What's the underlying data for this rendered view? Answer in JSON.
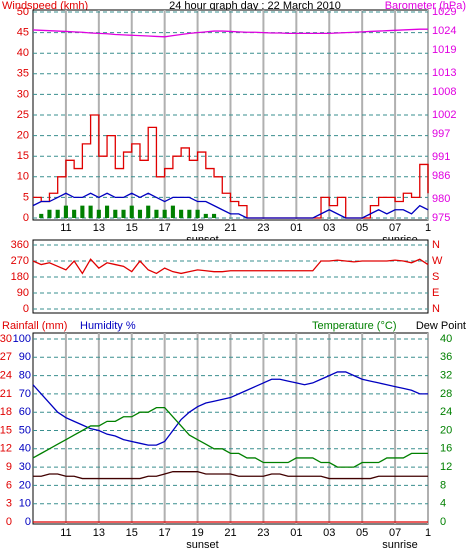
{
  "chart_data": [
    {
      "type": "line",
      "title": "24 hour graph day : 22 March 2010",
      "ylabel": "Windspeed (kmh)",
      "y2label": "Barometer (hPa)",
      "ycolor": "#e00000",
      "y2color": "#e000e0",
      "xlim": [
        0,
        24
      ],
      "xticks": [
        {
          "value": 2,
          "label": "11"
        },
        {
          "value": 4,
          "label": "13"
        },
        {
          "value": 6,
          "label": "15"
        },
        {
          "value": 8,
          "label": "17"
        },
        {
          "value": 10,
          "label": "19"
        },
        {
          "value": 12,
          "label": "21"
        },
        {
          "value": 14,
          "label": "23"
        },
        {
          "value": 16,
          "label": "01"
        },
        {
          "value": 18,
          "label": "03"
        },
        {
          "value": 20,
          "label": "05"
        },
        {
          "value": 22,
          "label": "07"
        },
        {
          "value": 24,
          "label": "1"
        }
      ],
      "ylim": [
        0,
        50
      ],
      "yticks": [
        0,
        5,
        10,
        15,
        20,
        25,
        30,
        35,
        40,
        45,
        50
      ],
      "y2lim": [
        975,
        1029
      ],
      "y2ticks": [
        975,
        980,
        986,
        991,
        997,
        1002,
        1008,
        1013,
        1019,
        1024,
        1029
      ],
      "annotations": [
        {
          "text": "sunset",
          "x": 10.3
        },
        {
          "text": "sunrise",
          "x": 22.3
        }
      ],
      "x": [
        0,
        0.5,
        1,
        1.5,
        2,
        2.5,
        3,
        3.5,
        4,
        4.5,
        5,
        5.5,
        6,
        6.5,
        7,
        7.5,
        8,
        8.5,
        9,
        9.5,
        10,
        10.5,
        11,
        11.5,
        12,
        12.5,
        13,
        13.5,
        14,
        14.5,
        15,
        15.5,
        16,
        16.5,
        17,
        17.5,
        18,
        18.5,
        19,
        19.5,
        20,
        20.5,
        21,
        21.5,
        22,
        22.5,
        23,
        23.5,
        24
      ],
      "series": [
        {
          "type": "bar",
          "color": "#008000",
          "values": [
            0,
            1,
            2,
            2,
            3,
            2,
            3,
            3,
            2,
            3,
            2,
            2,
            3,
            2,
            3,
            2,
            2,
            3,
            2,
            2,
            2,
            1,
            1,
            0,
            0,
            0,
            0,
            0,
            0,
            0,
            0,
            0,
            0,
            0,
            0,
            0,
            0,
            0,
            0,
            0,
            0,
            0,
            0,
            0,
            0,
            0,
            0,
            0,
            0
          ]
        },
        {
          "type": "step",
          "color": "#e00000",
          "values": [
            5,
            4,
            6,
            10,
            14,
            12,
            18,
            25,
            15,
            20,
            12,
            16,
            18,
            14,
            22,
            10,
            12,
            15,
            17,
            14,
            16,
            12,
            10,
            6,
            4,
            3,
            0,
            0,
            0,
            0,
            0,
            0,
            0,
            0,
            0,
            5,
            3,
            5,
            0,
            0,
            0,
            3,
            5,
            5,
            4,
            6,
            5,
            13,
            6
          ]
        },
        {
          "type": "line",
          "color": "#0000c0",
          "values": [
            3,
            4,
            4,
            5,
            6,
            5,
            5,
            6,
            5,
            6,
            5,
            5,
            6,
            5,
            6,
            5,
            4,
            5,
            5,
            5,
            4,
            4,
            3,
            2,
            1,
            1,
            0,
            0,
            0,
            0,
            0,
            0,
            0,
            0,
            0,
            1,
            2,
            1,
            0,
            0,
            0,
            1,
            2,
            1,
            2,
            2,
            1,
            3,
            2
          ]
        },
        {
          "type": "line",
          "color": "#e000e0",
          "axis": "y2",
          "values": [
            1024.3,
            1024.2,
            1024.1,
            1024.0,
            1023.9,
            1023.8,
            1023.7,
            1023.5,
            1023.4,
            1023.3,
            1023.1,
            1023.0,
            1022.9,
            1022.8,
            1022.7,
            1022.6,
            1022.5,
            1022.8,
            1023.1,
            1023.4,
            1023.6,
            1023.8,
            1024.0,
            1024.0,
            1023.9,
            1023.8,
            1023.7,
            1023.7,
            1023.6,
            1023.5,
            1023.5,
            1023.4,
            1023.4,
            1023.4,
            1023.4,
            1023.4,
            1023.4,
            1023.5,
            1023.6,
            1023.7,
            1023.8,
            1023.9,
            1024.0,
            1024.1,
            1024.2,
            1024.3,
            1024.4,
            1024.5,
            1024.5
          ]
        }
      ]
    },
    {
      "type": "line",
      "ycolor": "#e00000",
      "y2color": "#e00000",
      "xlim": [
        0,
        24
      ],
      "xticks": [
        {
          "value": 2,
          "label": ""
        },
        {
          "value": 4,
          "label": ""
        }
      ],
      "ylim": [
        0,
        360
      ],
      "yticks": [
        0,
        90,
        180,
        270,
        360
      ],
      "y2lim": [
        0,
        360
      ],
      "y2ticks": [
        {
          "value": 0,
          "label": "N"
        },
        {
          "value": 90,
          "label": "E"
        },
        {
          "value": 180,
          "label": "S"
        },
        {
          "value": 270,
          "label": "W"
        },
        {
          "value": 360,
          "label": "N"
        }
      ],
      "x": [
        0,
        0.5,
        1,
        1.5,
        2,
        2.5,
        3,
        3.5,
        4,
        4.5,
        5,
        5.5,
        6,
        6.5,
        7,
        7.5,
        8,
        8.5,
        9,
        9.5,
        10,
        10.5,
        11,
        11.5,
        12,
        12.5,
        13,
        13.5,
        14,
        14.5,
        15,
        15.5,
        16,
        16.5,
        17,
        17.5,
        18,
        18.5,
        19,
        19.5,
        20,
        20.5,
        21,
        21.5,
        22,
        22.5,
        23,
        23.5,
        24
      ],
      "series": [
        {
          "type": "line",
          "color": "#e00000",
          "values": [
            270,
            250,
            260,
            240,
            220,
            270,
            200,
            280,
            230,
            260,
            250,
            240,
            210,
            270,
            220,
            200,
            230,
            210,
            200,
            210,
            220,
            215,
            210,
            210,
            215,
            215,
            215,
            215,
            215,
            215,
            215,
            215,
            215,
            215,
            215,
            270,
            270,
            275,
            270,
            265,
            270,
            270,
            270,
            270,
            275,
            270,
            260,
            280,
            250
          ]
        }
      ]
    },
    {
      "type": "line",
      "ylabel": "Rainfall (mm)",
      "ylabel2": "Humidity %",
      "y2label": "Temperature (°C)",
      "y2label2": "Dew Point",
      "ycolor": "#0000c0",
      "y2color": "#008000",
      "y3color": "#e00000",
      "xlim": [
        0,
        24
      ],
      "xticks": [
        {
          "value": 2,
          "label": "11"
        },
        {
          "value": 4,
          "label": "13"
        },
        {
          "value": 6,
          "label": "15"
        },
        {
          "value": 8,
          "label": "17"
        },
        {
          "value": 10,
          "label": "19"
        },
        {
          "value": 12,
          "label": "21"
        },
        {
          "value": 14,
          "label": "23"
        },
        {
          "value": 16,
          "label": "01"
        },
        {
          "value": 18,
          "label": "03"
        },
        {
          "value": 20,
          "label": "05"
        },
        {
          "value": 22,
          "label": "07"
        },
        {
          "value": 24,
          "label": "1"
        }
      ],
      "ylim": [
        0,
        100
      ],
      "yticks": [
        0,
        10,
        20,
        30,
        40,
        50,
        60,
        70,
        80,
        90,
        100
      ],
      "y2lim": [
        0,
        40
      ],
      "y2ticks": [
        0,
        4,
        8,
        12,
        16,
        20,
        24,
        28,
        32,
        36,
        40
      ],
      "y3lim": [
        0,
        30
      ],
      "y3ticks": [
        0,
        3,
        6,
        9,
        12,
        15,
        18,
        21,
        24,
        27,
        30
      ],
      "annotations": [
        {
          "text": "sunset",
          "x": 10.3
        },
        {
          "text": "sunrise",
          "x": 22.3
        }
      ],
      "x": [
        0,
        0.5,
        1,
        1.5,
        2,
        2.5,
        3,
        3.5,
        4,
        4.5,
        5,
        5.5,
        6,
        6.5,
        7,
        7.5,
        8,
        8.5,
        9,
        9.5,
        10,
        10.5,
        11,
        11.5,
        12,
        12.5,
        13,
        13.5,
        14,
        14.5,
        15,
        15.5,
        16,
        16.5,
        17,
        17.5,
        18,
        18.5,
        19,
        19.5,
        20,
        20.5,
        21,
        21.5,
        22,
        22.5,
        23,
        23.5,
        24
      ],
      "series": [
        {
          "type": "line",
          "color": "#e00000",
          "axis": "y3",
          "x": [
            0,
            24
          ],
          "values": [
            0,
            0
          ]
        },
        {
          "type": "line",
          "color": "#0000c0",
          "values": [
            75,
            70,
            65,
            60,
            57,
            55,
            53,
            51,
            50,
            48,
            47,
            45,
            44,
            43,
            42,
            42,
            44,
            50,
            56,
            60,
            63,
            65,
            66,
            67,
            68,
            70,
            72,
            74,
            76,
            78,
            78,
            77,
            76,
            75,
            76,
            78,
            80,
            82,
            82,
            80,
            78,
            77,
            76,
            75,
            74,
            73,
            72,
            70,
            70
          ]
        },
        {
          "type": "line",
          "color": "#008000",
          "axis": "y2",
          "values": [
            14,
            15,
            16,
            17,
            18,
            19,
            20,
            21,
            21,
            22,
            22,
            23,
            23,
            24,
            24,
            25,
            25,
            23,
            21,
            19,
            18,
            17,
            16,
            16,
            15,
            15,
            14,
            14,
            13,
            13,
            13,
            13,
            14,
            14,
            14,
            13,
            13,
            12,
            12,
            12,
            13,
            13,
            13,
            14,
            14,
            14,
            15,
            15,
            15
          ]
        },
        {
          "type": "line",
          "color": "#400000",
          "axis": "y2",
          "values": [
            10,
            10,
            10.5,
            10.5,
            10,
            10,
            9.5,
            9.5,
            9.5,
            9.5,
            9.5,
            9.5,
            9.5,
            9.5,
            10,
            10,
            10.5,
            11,
            11,
            11,
            11,
            10.5,
            10.5,
            10.5,
            10.5,
            10,
            10,
            10,
            10,
            10.5,
            10.5,
            10,
            10,
            10,
            10,
            10,
            9.5,
            9.5,
            9.5,
            9.5,
            9.5,
            9.5,
            10,
            10,
            10,
            10,
            10,
            10,
            10
          ]
        }
      ]
    }
  ]
}
